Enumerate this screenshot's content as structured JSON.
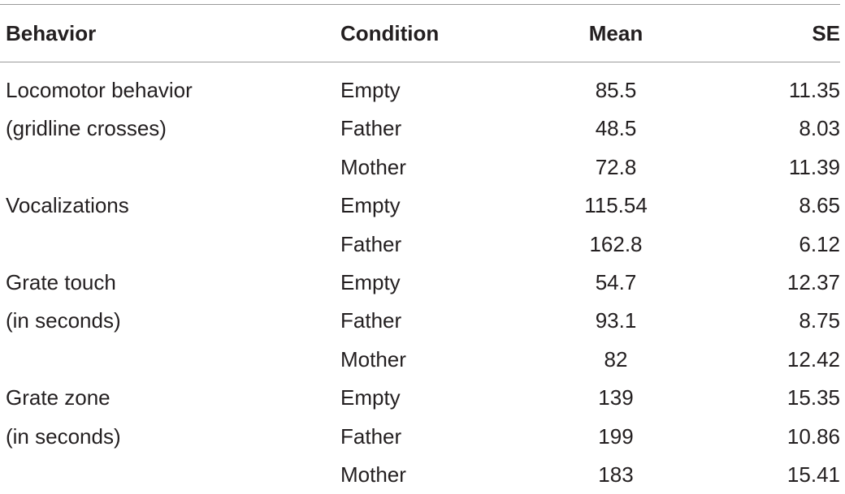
{
  "table": {
    "headers": {
      "behavior": "Behavior",
      "condition": "Condition",
      "mean": "Mean",
      "se": "SE"
    },
    "rows": [
      {
        "behavior": "Locomotor behavior",
        "condition": "Empty",
        "mean": "85.5",
        "se": "11.35"
      },
      {
        "behavior": "(gridline crosses)",
        "condition": "Father",
        "mean": "48.5",
        "se": "8.03"
      },
      {
        "behavior": "",
        "condition": "Mother",
        "mean": "72.8",
        "se": "11.39"
      },
      {
        "behavior": "Vocalizations",
        "condition": "Empty",
        "mean": "115.54",
        "se": "8.65"
      },
      {
        "behavior": "",
        "condition": "Father",
        "mean": "162.8",
        "se": "6.12"
      },
      {
        "behavior": "Grate touch",
        "condition": "Empty",
        "mean": "54.7",
        "se": "12.37"
      },
      {
        "behavior": "(in seconds)",
        "condition": "Father",
        "mean": "93.1",
        "se": "8.75"
      },
      {
        "behavior": "",
        "condition": "Mother",
        "mean": "82",
        "se": "12.42"
      },
      {
        "behavior": "Grate zone",
        "condition": "Empty",
        "mean": "139",
        "se": "15.35"
      },
      {
        "behavior": "(in seconds)",
        "condition": "Father",
        "mean": "199",
        "se": "10.86"
      },
      {
        "behavior": "",
        "condition": "Mother",
        "mean": "183",
        "se": "15.41"
      }
    ]
  }
}
